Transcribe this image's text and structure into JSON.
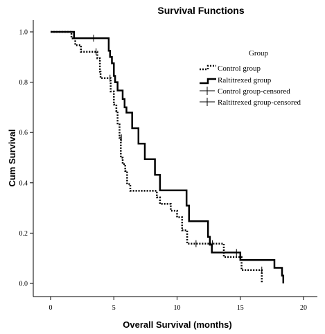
{
  "chart_data": {
    "type": "line",
    "subtype": "kaplan-meier-step",
    "title": "Survival Functions",
    "xlabel": "Overall Survival (months)",
    "ylabel": "Cum Survival",
    "xlim": [
      0,
      20
    ],
    "ylim": [
      0,
      1.0
    ],
    "x_ticks": [
      "0",
      "5",
      "10",
      "15",
      "20"
    ],
    "y_ticks": [
      "0.0",
      "0.2",
      "0.4",
      "0.6",
      "0.8",
      "1.0"
    ],
    "grid": false,
    "legend": {
      "title": "Group",
      "position": "top-right",
      "entries": [
        "Control group",
        "Raltitrexed group",
        "Control group-censored",
        "Raltitrexed group-censored"
      ]
    },
    "series": [
      {
        "name": "Control group",
        "style": "dotted",
        "points": [
          [
            0,
            1.0
          ],
          [
            1.65,
            1.0
          ],
          [
            1.65,
            0.974
          ],
          [
            1.95,
            0.974
          ],
          [
            1.95,
            0.947
          ],
          [
            2.4,
            0.947
          ],
          [
            2.4,
            0.921
          ],
          [
            3.7,
            0.921
          ],
          [
            3.7,
            0.895
          ],
          [
            3.9,
            0.895
          ],
          [
            3.9,
            0.842
          ],
          [
            3.95,
            0.842
          ],
          [
            3.95,
            0.816
          ],
          [
            4.75,
            0.816
          ],
          [
            4.75,
            0.763
          ],
          [
            5.0,
            0.763
          ],
          [
            5.0,
            0.711
          ],
          [
            5.2,
            0.711
          ],
          [
            5.2,
            0.684
          ],
          [
            5.3,
            0.684
          ],
          [
            5.3,
            0.632
          ],
          [
            5.45,
            0.632
          ],
          [
            5.45,
            0.579
          ],
          [
            5.55,
            0.579
          ],
          [
            5.55,
            0.5
          ],
          [
            5.7,
            0.5
          ],
          [
            5.7,
            0.474
          ],
          [
            5.9,
            0.474
          ],
          [
            5.9,
            0.447
          ],
          [
            6.05,
            0.447
          ],
          [
            6.05,
            0.395
          ],
          [
            6.3,
            0.395
          ],
          [
            6.3,
            0.368
          ],
          [
            7.05,
            0.368
          ],
          [
            7.05,
            0.368
          ],
          [
            8.4,
            0.368
          ],
          [
            8.4,
            0.342
          ],
          [
            8.65,
            0.342
          ],
          [
            8.65,
            0.316
          ],
          [
            9.5,
            0.316
          ],
          [
            9.5,
            0.289
          ],
          [
            10.0,
            0.289
          ],
          [
            10.0,
            0.263
          ],
          [
            10.4,
            0.263
          ],
          [
            10.4,
            0.211
          ],
          [
            10.8,
            0.211
          ],
          [
            10.8,
            0.158
          ],
          [
            13.7,
            0.158
          ],
          [
            13.7,
            0.105
          ],
          [
            15.1,
            0.105
          ],
          [
            15.1,
            0.053
          ],
          [
            16.7,
            0.053
          ],
          [
            16.7,
            0.0
          ]
        ],
        "censored": [
          [
            3.6,
            0.921
          ],
          [
            4.7,
            0.816
          ],
          [
            5.6,
            0.579
          ],
          [
            11.5,
            0.158
          ],
          [
            12.8,
            0.158
          ],
          [
            16.7,
            0.053
          ]
        ]
      },
      {
        "name": "Raltitrexed group",
        "style": "solid",
        "points": [
          [
            0,
            1.0
          ],
          [
            1.85,
            1.0
          ],
          [
            1.85,
            0.975
          ],
          [
            4.6,
            0.975
          ],
          [
            4.6,
            0.925
          ],
          [
            4.7,
            0.925
          ],
          [
            4.7,
            0.9
          ],
          [
            4.85,
            0.9
          ],
          [
            4.85,
            0.875
          ],
          [
            5.0,
            0.875
          ],
          [
            5.0,
            0.825
          ],
          [
            5.1,
            0.825
          ],
          [
            5.1,
            0.8
          ],
          [
            5.3,
            0.8
          ],
          [
            5.3,
            0.767
          ],
          [
            5.7,
            0.767
          ],
          [
            5.7,
            0.733
          ],
          [
            5.85,
            0.733
          ],
          [
            5.85,
            0.7
          ],
          [
            6.0,
            0.7
          ],
          [
            6.0,
            0.679
          ],
          [
            6.45,
            0.679
          ],
          [
            6.45,
            0.617
          ],
          [
            6.95,
            0.617
          ],
          [
            6.95,
            0.556
          ],
          [
            7.45,
            0.556
          ],
          [
            7.45,
            0.494
          ],
          [
            8.25,
            0.494
          ],
          [
            8.25,
            0.432
          ],
          [
            8.65,
            0.432
          ],
          [
            8.65,
            0.37
          ],
          [
            10.75,
            0.37
          ],
          [
            10.75,
            0.309
          ],
          [
            10.95,
            0.309
          ],
          [
            10.95,
            0.247
          ],
          [
            12.45,
            0.247
          ],
          [
            12.45,
            0.185
          ],
          [
            12.6,
            0.185
          ],
          [
            12.6,
            0.154
          ],
          [
            12.75,
            0.154
          ],
          [
            12.75,
            0.123
          ],
          [
            15.0,
            0.123
          ],
          [
            15.0,
            0.093
          ],
          [
            17.7,
            0.093
          ],
          [
            17.7,
            0.062
          ],
          [
            18.3,
            0.062
          ],
          [
            18.3,
            0.031
          ],
          [
            18.4,
            0.031
          ],
          [
            18.4,
            0.0
          ]
        ],
        "censored": [
          [
            3.4,
            0.975
          ],
          [
            14.7,
            0.123
          ]
        ]
      }
    ]
  }
}
